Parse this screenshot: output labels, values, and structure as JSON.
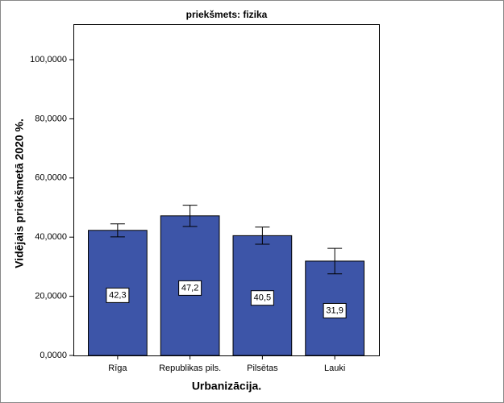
{
  "chart_data": {
    "type": "bar",
    "title": "priekšmets: fizika",
    "x_label": "Urbanizācija.",
    "y_label": "Vidējais priekšmetā 2020 %.",
    "categories": [
      "Rīga",
      "Republikas pils.",
      "Pilsētas",
      "Lauki"
    ],
    "values": [
      42.3,
      47.2,
      40.5,
      31.9
    ],
    "value_labels": [
      "42,3",
      "47,2",
      "40,5",
      "31,9"
    ],
    "errors": [
      2.2,
      3.6,
      2.9,
      4.3
    ],
    "color": "#3d55a8",
    "ylim": [
      0,
      112
    ],
    "yticks": [
      {
        "value": 0,
        "label": "0,0000"
      },
      {
        "value": 20,
        "label": "20,0000"
      },
      {
        "value": 40,
        "label": "40,0000"
      },
      {
        "value": 60,
        "label": "60,0000"
      },
      {
        "value": 80,
        "label": "80,0000"
      },
      {
        "value": 100,
        "label": "100,0000"
      }
    ],
    "grid": false
  }
}
